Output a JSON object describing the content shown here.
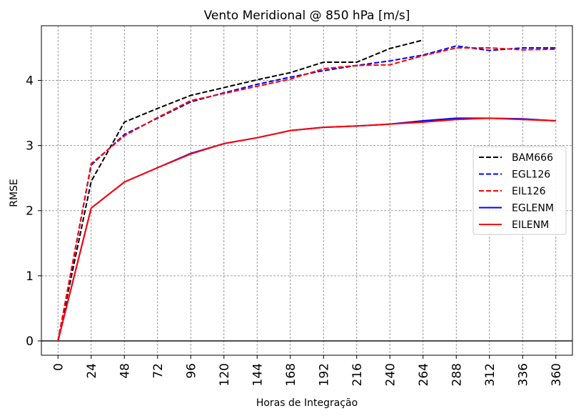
{
  "chart_data": {
    "type": "line",
    "title": "Vento Meridional @ 850 hPa [m/s]",
    "xlabel": "Horas de Integração",
    "ylabel": "RMSE",
    "xlim": [
      -12,
      372
    ],
    "ylim": [
      -0.22,
      4.84
    ],
    "xticks": [
      0,
      24,
      48,
      72,
      96,
      120,
      144,
      168,
      192,
      216,
      240,
      264,
      288,
      312,
      336,
      360
    ],
    "yticks": [
      0,
      1,
      2,
      3,
      4
    ],
    "grid": true,
    "zero_line": true,
    "legend_position": "center-right",
    "series": [
      {
        "name": "BAM666",
        "color": "#000000",
        "style": "dashed",
        "x": [
          0,
          24,
          48,
          72,
          96,
          120,
          144,
          168,
          192,
          216,
          240,
          264
        ],
        "values": [
          0.0,
          2.45,
          3.36,
          3.57,
          3.77,
          3.89,
          4.01,
          4.12,
          4.28,
          4.28,
          4.49,
          4.62
        ]
      },
      {
        "name": "EGL126",
        "color": "#0000ff",
        "style": "dashed",
        "x": [
          0,
          24,
          48,
          72,
          96,
          120,
          144,
          168,
          192,
          216,
          240,
          264,
          288,
          312,
          336,
          360
        ],
        "values": [
          0.0,
          2.7,
          3.17,
          3.42,
          3.67,
          3.81,
          3.94,
          4.05,
          4.15,
          4.23,
          4.3,
          4.39,
          4.53,
          4.46,
          4.5,
          4.5
        ]
      },
      {
        "name": "EIL126",
        "color": "#ff0000",
        "style": "dashed",
        "x": [
          0,
          24,
          48,
          72,
          96,
          120,
          144,
          168,
          192,
          216,
          240,
          264,
          288,
          312,
          336,
          360
        ],
        "values": [
          0.0,
          2.72,
          3.15,
          3.43,
          3.69,
          3.8,
          3.91,
          4.02,
          4.18,
          4.23,
          4.24,
          4.38,
          4.5,
          4.5,
          4.47,
          4.48
        ]
      },
      {
        "name": "EGLENM",
        "color": "#0000ff",
        "style": "solid",
        "x": [
          0,
          24,
          48,
          72,
          96,
          120,
          144,
          168,
          192,
          216,
          240,
          264,
          288,
          312,
          336,
          360
        ],
        "values": [
          0.0,
          2.04,
          2.44,
          2.66,
          2.88,
          3.03,
          3.12,
          3.23,
          3.28,
          3.3,
          3.33,
          3.38,
          3.42,
          3.42,
          3.41,
          3.38
        ]
      },
      {
        "name": "EILENM",
        "color": "#ff0000",
        "style": "solid",
        "x": [
          0,
          24,
          48,
          72,
          96,
          120,
          144,
          168,
          192,
          216,
          240,
          264,
          288,
          312,
          336,
          360
        ],
        "values": [
          0.0,
          2.04,
          2.44,
          2.66,
          2.87,
          3.03,
          3.12,
          3.23,
          3.28,
          3.3,
          3.33,
          3.36,
          3.4,
          3.42,
          3.4,
          3.38
        ]
      }
    ]
  }
}
